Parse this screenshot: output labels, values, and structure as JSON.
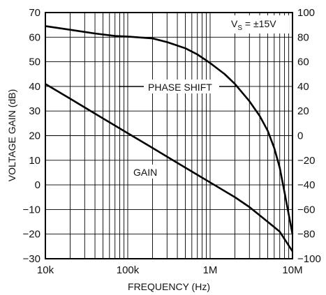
{
  "chart_data": {
    "type": "line",
    "title": "",
    "xlabel": "FREQUENCY (Hz)",
    "ylabel": "VOLTAGE GAIN (dB)",
    "y2label": "",
    "xscale": "log",
    "xlim": [
      10000,
      10000000
    ],
    "ylim": [
      -30,
      70
    ],
    "y2lim": [
      -100,
      100
    ],
    "xtick_values": [
      10000,
      100000,
      1000000,
      10000000
    ],
    "xtick_labels": [
      "10k",
      "100k",
      "1M",
      "10M"
    ],
    "ytick_labels": [
      "70",
      "60",
      "50",
      "40",
      "30",
      "20",
      "10",
      "0",
      "−10",
      "−20",
      "−30"
    ],
    "y2tick_labels": [
      "100",
      "80",
      "60",
      "40",
      "20",
      "0",
      "−20",
      "−40",
      "−60",
      "−80",
      "−100"
    ],
    "grid": true,
    "series": [
      {
        "name": "GAIN",
        "axis": "left",
        "x": [
          10000,
          20000,
          50000,
          100000,
          200000,
          500000,
          1000000,
          2000000,
          3000000,
          5000000,
          7000000,
          10000000
        ],
        "y": [
          41,
          35,
          27,
          21,
          15,
          7,
          1,
          -5,
          -9,
          -15,
          -19,
          -27
        ]
      },
      {
        "name": "PHASE SHIFT",
        "axis": "right",
        "x": [
          10000,
          20000,
          40000,
          70000,
          100000,
          200000,
          300000,
          500000,
          700000,
          1000000,
          1500000,
          2000000,
          3000000,
          4000000,
          5000000,
          6000000,
          7000000,
          8000000,
          9000000,
          10000000
        ],
        "y": [
          89,
          86,
          83,
          81,
          80.5,
          79,
          76,
          71,
          66,
          59,
          50,
          42,
          28,
          16,
          4,
          -10,
          -26,
          -46,
          -64,
          -80
        ]
      }
    ],
    "annotations": {
      "gain_label": "GAIN",
      "phase_label": "PHASE SHIFT",
      "supply_label": "V",
      "supply_sub": "S",
      "supply_value": " = ±15V"
    }
  }
}
